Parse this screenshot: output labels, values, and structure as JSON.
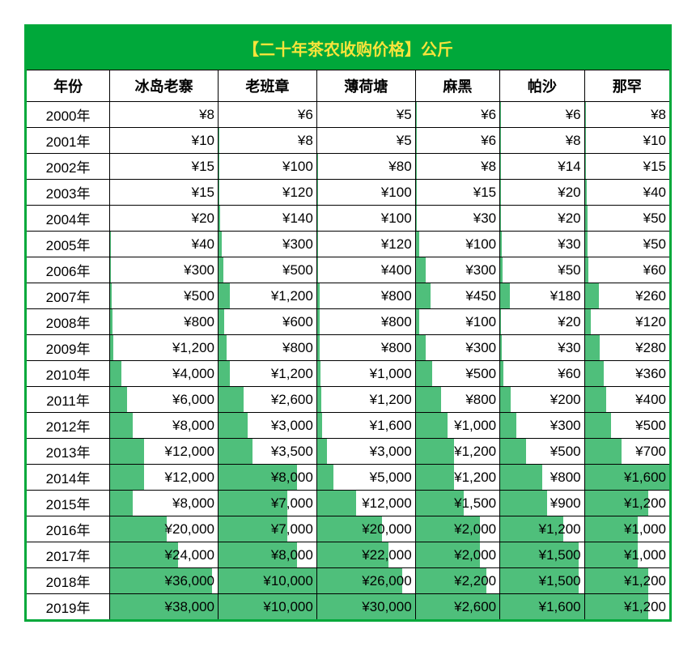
{
  "title": "【二十年茶农收购价格】公斤",
  "title_color": "#f7e43b",
  "header_bg": "#00a83a",
  "bar_color": "#4fbf7b",
  "border_color": "#000000",
  "outer_border_color": "#00a83a",
  "font_family": "Microsoft YaHei",
  "title_fontsize": 20,
  "header_fontsize": 18,
  "cell_fontsize": 17,
  "columns": [
    "年份",
    "冰岛老寨",
    "老班章",
    "薄荷塘",
    "麻黑",
    "帕沙",
    "那罕"
  ],
  "years": [
    "2000年",
    "2001年",
    "2002年",
    "2003年",
    "2004年",
    "2005年",
    "2006年",
    "2007年",
    "2008年",
    "2009年",
    "2010年",
    "2011年",
    "2012年",
    "2013年",
    "2014年",
    "2015年",
    "2016年",
    "2017年",
    "2018年",
    "2019年"
  ],
  "series": {
    "冰岛老寨": [
      8,
      10,
      15,
      15,
      20,
      40,
      300,
      500,
      800,
      1200,
      4000,
      6000,
      8000,
      12000,
      12000,
      8000,
      20000,
      24000,
      36000,
      38000
    ],
    "老班章": [
      6,
      8,
      100,
      120,
      140,
      300,
      500,
      1200,
      600,
      800,
      1200,
      2600,
      3000,
      3500,
      8000,
      7000,
      7000,
      8000,
      10000,
      10000
    ],
    "薄荷塘": [
      5,
      5,
      80,
      100,
      100,
      120,
      400,
      800,
      800,
      800,
      1000,
      1200,
      1600,
      3000,
      5000,
      12000,
      20000,
      22000,
      26000,
      30000
    ],
    "麻黑": [
      6,
      6,
      8,
      15,
      30,
      100,
      300,
      450,
      100,
      300,
      500,
      800,
      1000,
      1200,
      1200,
      1500,
      2000,
      2000,
      2200,
      2600
    ],
    "帕沙": [
      6,
      8,
      14,
      20,
      20,
      30,
      50,
      180,
      20,
      30,
      60,
      200,
      300,
      500,
      800,
      900,
      1200,
      1500,
      1500,
      1600
    ],
    "那罕": [
      8,
      10,
      15,
      40,
      50,
      50,
      60,
      260,
      120,
      280,
      360,
      400,
      500,
      700,
      1600,
      1200,
      1000,
      1000,
      1200,
      1200
    ]
  },
  "column_max": {
    "冰岛老寨": 38000,
    "老班章": 10000,
    "薄荷塘": 30000,
    "麻黑": 2600,
    "帕沙": 1600,
    "那罕": 1600
  },
  "currency_prefix": "¥"
}
